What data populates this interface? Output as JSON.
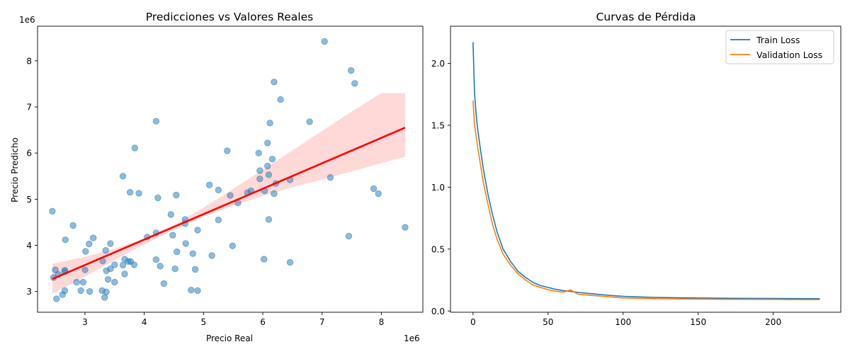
{
  "chart_data": [
    {
      "type": "scatter",
      "title": "Predicciones vs Valores Reales",
      "xlabel": "Precio Real",
      "ylabel": "Precio Predicho",
      "x_offset_label": "1e6",
      "y_offset_label": "1e6",
      "xlim": [
        2.2,
        8.7
      ],
      "ylim": [
        2.55,
        8.75
      ],
      "xticks": [
        3,
        4,
        5,
        6,
        7,
        8
      ],
      "yticks": [
        3,
        4,
        5,
        6,
        7,
        8
      ],
      "point_color": "#1f77b4",
      "fit_line_color": "#ff0000",
      "confidence_band_color": "#ff9999",
      "regression": {
        "x": [
          2.45,
          8.4
        ],
        "y": [
          3.27,
          6.55
        ]
      },
      "confidence_band": {
        "x": [
          2.45,
          3.0,
          3.5,
          4.0,
          4.5,
          5.0,
          5.5,
          6.0,
          6.5,
          7.0,
          7.5,
          8.0,
          8.4
        ],
        "lower": [
          2.95,
          3.32,
          3.68,
          4.02,
          4.34,
          4.62,
          4.86,
          5.07,
          5.26,
          5.43,
          5.6,
          5.78,
          5.92
        ],
        "upper": [
          3.6,
          3.75,
          3.93,
          4.15,
          4.44,
          4.82,
          5.22,
          5.64,
          6.06,
          6.48,
          6.9,
          7.3,
          7.3
        ]
      },
      "points": [
        [
          2.45,
          4.74
        ],
        [
          2.47,
          3.3
        ],
        [
          2.5,
          3.47
        ],
        [
          2.52,
          2.84
        ],
        [
          2.55,
          3.37
        ],
        [
          2.62,
          2.93
        ],
        [
          2.66,
          3.02
        ],
        [
          2.66,
          3.43
        ],
        [
          2.66,
          3.46
        ],
        [
          2.67,
          4.12
        ],
        [
          2.8,
          4.43
        ],
        [
          2.86,
          3.2
        ],
        [
          2.93,
          3.02
        ],
        [
          2.97,
          3.2
        ],
        [
          3.0,
          3.47
        ],
        [
          3.01,
          3.87
        ],
        [
          3.07,
          4.03
        ],
        [
          3.08,
          3.0
        ],
        [
          3.14,
          4.16
        ],
        [
          3.29,
          3.02
        ],
        [
          3.3,
          3.66
        ],
        [
          3.33,
          2.87
        ],
        [
          3.35,
          3.89
        ],
        [
          3.36,
          3.45
        ],
        [
          3.36,
          2.99
        ],
        [
          3.39,
          3.26
        ],
        [
          3.43,
          3.49
        ],
        [
          3.43,
          4.04
        ],
        [
          3.5,
          3.58
        ],
        [
          3.5,
          3.2
        ],
        [
          3.64,
          5.5
        ],
        [
          3.64,
          3.57
        ],
        [
          3.67,
          3.7
        ],
        [
          3.67,
          3.38
        ],
        [
          3.73,
          3.65
        ],
        [
          3.76,
          5.15
        ],
        [
          3.77,
          3.65
        ],
        [
          3.83,
          3.58
        ],
        [
          3.84,
          6.11
        ],
        [
          3.91,
          5.13
        ],
        [
          4.05,
          4.18
        ],
        [
          4.2,
          6.69
        ],
        [
          4.2,
          4.27
        ],
        [
          4.2,
          3.69
        ],
        [
          4.23,
          5.03
        ],
        [
          4.27,
          3.55
        ],
        [
          4.33,
          3.17
        ],
        [
          4.45,
          4.67
        ],
        [
          4.48,
          4.22
        ],
        [
          4.52,
          3.49
        ],
        [
          4.54,
          5.09
        ],
        [
          4.55,
          3.86
        ],
        [
          4.69,
          4.56
        ],
        [
          4.69,
          4.47
        ],
        [
          4.7,
          4.04
        ],
        [
          4.79,
          3.03
        ],
        [
          4.82,
          3.82
        ],
        [
          4.86,
          3.48
        ],
        [
          4.9,
          4.33
        ],
        [
          4.9,
          3.02
        ],
        [
          5.1,
          5.31
        ],
        [
          5.14,
          3.78
        ],
        [
          5.25,
          5.2
        ],
        [
          5.25,
          4.55
        ],
        [
          5.4,
          6.05
        ],
        [
          5.45,
          5.08
        ],
        [
          5.49,
          3.99
        ],
        [
          5.58,
          4.92
        ],
        [
          5.74,
          5.14
        ],
        [
          5.8,
          5.18
        ],
        [
          5.93,
          6.0
        ],
        [
          5.95,
          5.44
        ],
        [
          5.95,
          5.62
        ],
        [
          6.02,
          3.7
        ],
        [
          6.03,
          5.18
        ],
        [
          6.08,
          5.72
        ],
        [
          6.08,
          6.22
        ],
        [
          6.1,
          4.56
        ],
        [
          6.1,
          5.53
        ],
        [
          6.12,
          6.65
        ],
        [
          6.16,
          5.87
        ],
        [
          6.19,
          7.54
        ],
        [
          6.19,
          5.12
        ],
        [
          6.22,
          5.34
        ],
        [
          6.3,
          7.16
        ],
        [
          6.46,
          5.42
        ],
        [
          6.46,
          3.63
        ],
        [
          6.79,
          6.68
        ],
        [
          7.04,
          8.42
        ],
        [
          7.14,
          5.47
        ],
        [
          7.45,
          4.2
        ],
        [
          7.49,
          7.79
        ],
        [
          7.55,
          7.51
        ],
        [
          7.87,
          5.23
        ],
        [
          7.95,
          5.12
        ],
        [
          8.4,
          4.39
        ]
      ]
    },
    {
      "type": "line",
      "title": "Curvas de Pérdida",
      "xlim": [
        -15,
        245
      ],
      "ylim": [
        -0.01,
        2.3
      ],
      "xticks": [
        0,
        50,
        100,
        150,
        200
      ],
      "yticks": [
        0.0,
        0.5,
        1.0,
        1.5,
        2.0
      ],
      "legend_position": "top-right",
      "series": [
        {
          "name": "Train Loss",
          "color": "#1f77b4",
          "x": [
            0,
            1,
            2,
            3,
            5,
            7,
            10,
            13,
            16,
            20,
            25,
            30,
            35,
            40,
            45,
            50,
            55,
            60,
            65,
            70,
            80,
            90,
            100,
            120,
            140,
            160,
            180,
            200,
            220,
            231
          ],
          "y": [
            2.17,
            1.76,
            1.6,
            1.48,
            1.3,
            1.14,
            0.94,
            0.78,
            0.64,
            0.5,
            0.4,
            0.32,
            0.27,
            0.23,
            0.205,
            0.19,
            0.175,
            0.165,
            0.158,
            0.15,
            0.138,
            0.127,
            0.118,
            0.11,
            0.106,
            0.104,
            0.102,
            0.101,
            0.1,
            0.1
          ]
        },
        {
          "name": "Validation Loss",
          "color": "#ff7f0e",
          "x": [
            0,
            1,
            2,
            3,
            5,
            7,
            10,
            13,
            16,
            20,
            25,
            30,
            35,
            40,
            45,
            50,
            55,
            60,
            65,
            70,
            80,
            90,
            100,
            120,
            140,
            160,
            180,
            200,
            220,
            231
          ],
          "y": [
            1.7,
            1.5,
            1.42,
            1.33,
            1.18,
            1.03,
            0.86,
            0.7,
            0.58,
            0.46,
            0.37,
            0.3,
            0.25,
            0.21,
            0.19,
            0.172,
            0.16,
            0.152,
            0.17,
            0.135,
            0.125,
            0.115,
            0.105,
            0.1,
            0.097,
            0.095,
            0.094,
            0.093,
            0.092,
            0.092
          ]
        }
      ]
    }
  ]
}
